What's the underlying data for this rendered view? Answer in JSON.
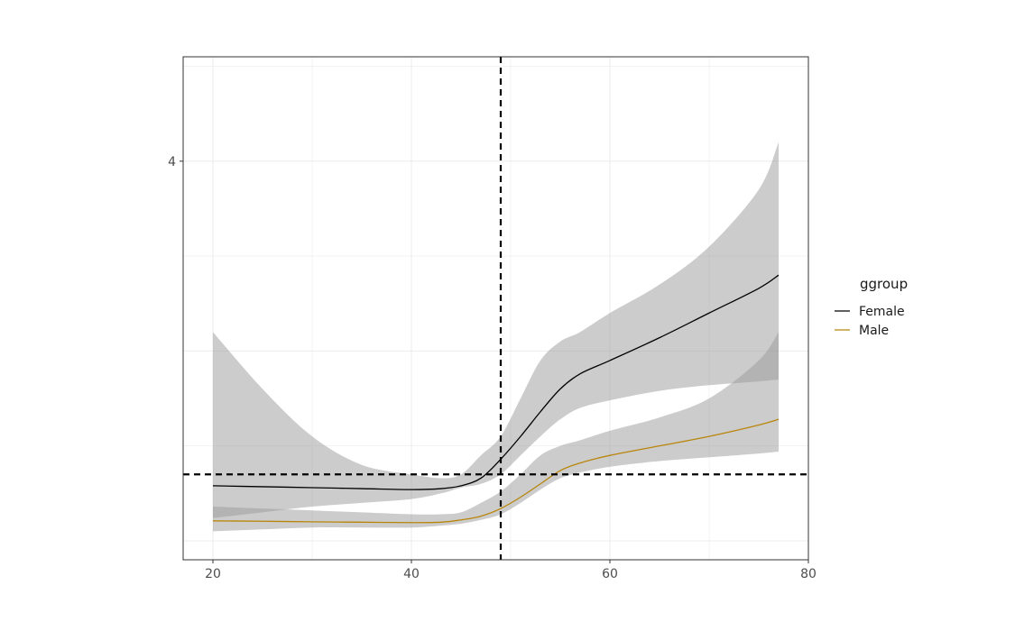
{
  "chart_data": {
    "type": "line",
    "title": "",
    "xlabel": "",
    "ylabel": "",
    "xlim": [
      17,
      80
    ],
    "ylim": [
      1.9,
      4.55
    ],
    "x_ticks": [
      20,
      40,
      60,
      80
    ],
    "y_ticks": [
      4
    ],
    "grid": true,
    "legend": {
      "title": "ggroup",
      "placement": "right"
    },
    "reference_lines": {
      "vertical_x": 49,
      "horizontal_y": 2.35,
      "style": "dashed"
    },
    "series": [
      {
        "name": "Female",
        "color": "#000000",
        "band_color": "#c2c2c2",
        "x": [
          20,
          25,
          30,
          35,
          40,
          43,
          45,
          47,
          49,
          51,
          53,
          55,
          57,
          60,
          65,
          70,
          75,
          77
        ],
        "y": [
          2.29,
          2.285,
          2.28,
          2.275,
          2.27,
          2.275,
          2.29,
          2.33,
          2.43,
          2.55,
          2.68,
          2.8,
          2.88,
          2.95,
          3.07,
          3.2,
          3.33,
          3.4
        ],
        "lower": [
          2.12,
          2.15,
          2.18,
          2.2,
          2.22,
          2.25,
          2.28,
          2.3,
          2.35,
          2.45,
          2.55,
          2.64,
          2.7,
          2.74,
          2.79,
          2.82,
          2.84,
          2.85
        ],
        "upper": [
          3.1,
          2.8,
          2.55,
          2.4,
          2.35,
          2.33,
          2.35,
          2.45,
          2.55,
          2.75,
          2.95,
          3.05,
          3.1,
          3.2,
          3.35,
          3.55,
          3.85,
          4.1
        ]
      },
      {
        "name": "Male",
        "color": "#b8860b",
        "band_color": "#c2c2c2",
        "x": [
          20,
          25,
          30,
          35,
          40,
          43,
          45,
          47,
          49,
          51,
          53,
          55,
          57,
          60,
          65,
          70,
          75,
          77
        ],
        "y": [
          2.105,
          2.103,
          2.1,
          2.098,
          2.096,
          2.098,
          2.11,
          2.13,
          2.17,
          2.23,
          2.3,
          2.37,
          2.41,
          2.45,
          2.5,
          2.55,
          2.61,
          2.64
        ],
        "lower": [
          2.05,
          2.06,
          2.07,
          2.07,
          2.07,
          2.08,
          2.09,
          2.11,
          2.14,
          2.2,
          2.27,
          2.33,
          2.36,
          2.39,
          2.42,
          2.44,
          2.46,
          2.47
        ],
        "upper": [
          2.18,
          2.17,
          2.16,
          2.15,
          2.14,
          2.14,
          2.15,
          2.2,
          2.26,
          2.35,
          2.45,
          2.5,
          2.53,
          2.58,
          2.65,
          2.75,
          2.95,
          3.1
        ]
      }
    ]
  }
}
